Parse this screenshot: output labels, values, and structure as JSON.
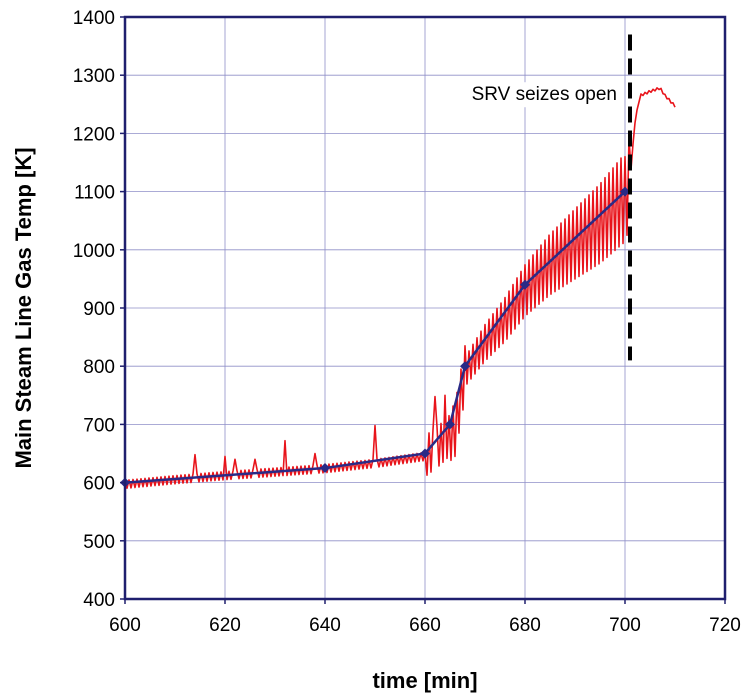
{
  "chart_data": {
    "type": "line",
    "xlabel": "time [min]",
    "ylabel": "Main Steam Line Gas Temp [K]",
    "xlim": [
      600,
      720
    ],
    "ylim": [
      400,
      1400
    ],
    "xticks": [
      600,
      620,
      640,
      660,
      680,
      700,
      720
    ],
    "yticks": [
      400,
      500,
      600,
      700,
      800,
      900,
      1000,
      1100,
      1200,
      1300,
      1400
    ],
    "grid": true,
    "legend": "none",
    "colors": {
      "fluctuating": "#e8141b",
      "markers": "#2a2a86",
      "event_line": "#000000",
      "frame": "#1f1f6e",
      "grid": "#8f8fc8"
    },
    "series": [
      {
        "style": "oscillating",
        "points": [
          [
            600,
            597
          ],
          [
            610,
            605
          ],
          [
            620,
            612
          ],
          [
            630,
            618
          ],
          [
            640,
            624
          ],
          [
            650,
            633
          ],
          [
            660,
            645
          ],
          [
            663,
            665
          ],
          [
            666,
            690
          ],
          [
            668,
            790
          ],
          [
            672,
            840
          ],
          [
            676,
            880
          ],
          [
            680,
            930
          ],
          [
            685,
            975
          ],
          [
            690,
            1010
          ],
          [
            695,
            1045
          ],
          [
            700,
            1090
          ],
          [
            701,
            1120
          ],
          [
            702,
            1220
          ],
          [
            703,
            1265
          ],
          [
            705,
            1272
          ],
          [
            707,
            1278
          ],
          [
            708,
            1265
          ],
          [
            710,
            1247
          ]
        ],
        "spikes": [
          [
            614,
            648
          ],
          [
            620,
            645
          ],
          [
            622,
            640
          ],
          [
            626,
            640
          ],
          [
            632,
            672
          ],
          [
            638,
            650
          ],
          [
            650,
            698
          ],
          [
            662,
            748
          ],
          [
            664,
            750
          ],
          [
            700,
            1160
          ]
        ]
      },
      {
        "style": "markers",
        "x": [
          600,
          640,
          660,
          665,
          668,
          680,
          700
        ],
        "y": [
          600,
          625,
          650,
          700,
          800,
          940,
          1100
        ]
      }
    ],
    "annotations": [
      {
        "text": "SRV seizes open",
        "x_line": 701,
        "y_from": 810,
        "y_to": 1370
      }
    ]
  }
}
